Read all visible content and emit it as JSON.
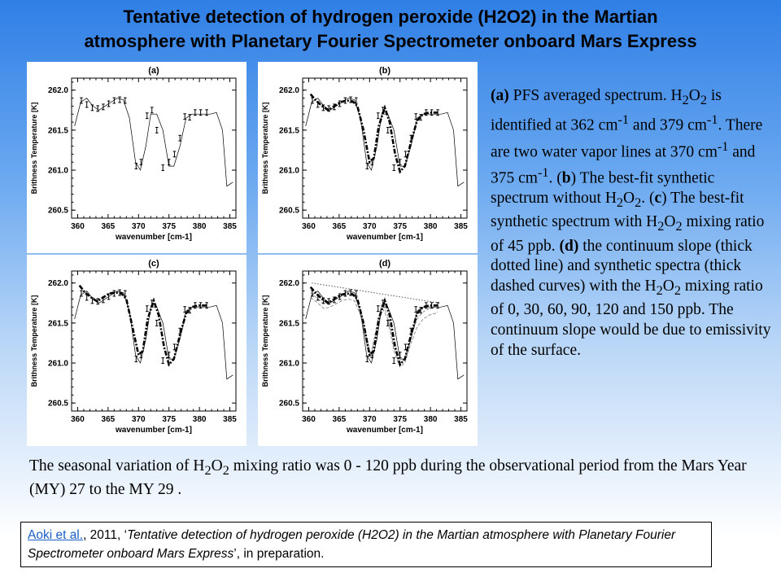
{
  "slide": {
    "title_line1": "Tentative detection of hydrogen peroxide (H2O2) in the Martian",
    "title_line2": "atmosphere with Planetary Fourier Spectrometer onboard Mars Express"
  },
  "description": {
    "a_label": "(a)",
    "a_text1": " PFS averaged spectrum. H",
    "sub2": "2",
    "a_text2": "O",
    "a_text3": " is identified at 362 cm",
    "sup_m1": "-1",
    "a_text4": " and 379 cm",
    "a_text5": ". There are two water vapor lines at 370 cm",
    "a_text6": " and 375 cm",
    "a_text7": ". (",
    "b_label": "b",
    "b_text1": ") The best-fit synthetic spectrum without H",
    "b_text2": ". (",
    "c_label": "c",
    "c_text1": ") The best-fit synthetic spectrum with H",
    "c_text2": " mixing ratio of 45 ppb. ",
    "d_label": "(d)",
    "d_text1": " the continuum slope (thick dotted line) and synthetic spectra (thick dashed curves) with the H",
    "d_text2": " mixing ratio of 0, 30, 60, 90, 120 and 150 ppb. The continuum slope would be due to emissivity of the surface."
  },
  "summary": {
    "text1": "The seasonal variation of H",
    "text2": " mixing ratio was 0 - 120 ppb during the observational period from the Mars Year (MY) 27 to the MY 29 ."
  },
  "citation": {
    "author_link": "Aoki et al.",
    "year": ", 2011, ‘",
    "title": "Tentative detection of hydrogen peroxide (H2O2) in the Martian atmosphere with Planetary Fourier Spectrometer onboard Mars Express",
    "tail": "’, in preparation."
  },
  "chart_data": [
    {
      "type": "line",
      "panel": "(a)",
      "xlabel": "wavenumber [cm-1]",
      "ylabel": "Brithness Temperature [K]",
      "xlim": [
        359,
        386
      ],
      "ylim": [
        260.4,
        262.15
      ],
      "xticks": [
        "360",
        "365",
        "370",
        "375",
        "380",
        "385"
      ],
      "yticks": [
        "260.5",
        "261.0",
        "261.5",
        "262.0"
      ],
      "series": [
        {
          "style": "solid-thin",
          "x": [
            359.5,
            360.5,
            361.5,
            362.5,
            363.5,
            364.5,
            365.5,
            366.5,
            367.5,
            368.5,
            369.5,
            370.3,
            371.2,
            372.0,
            373.0,
            374.0,
            375.0,
            375.8,
            376.8,
            377.8,
            378.8,
            379.8,
            380.8,
            381.8,
            382.8,
            383.8,
            384.5,
            385.5
          ],
          "y": [
            261.55,
            261.85,
            261.9,
            261.8,
            261.75,
            261.8,
            261.85,
            261.9,
            261.88,
            261.65,
            261.1,
            261.0,
            261.3,
            261.7,
            261.7,
            261.5,
            261.05,
            261.05,
            261.3,
            261.65,
            261.7,
            261.7,
            261.7,
            261.7,
            261.72,
            261.5,
            260.8,
            260.85
          ]
        },
        {
          "style": "errorbars",
          "x": [
            360.6,
            361.5,
            362.4,
            363.3,
            364.2,
            365.1,
            366.0,
            366.9,
            367.8,
            369.6,
            370.4,
            371.4,
            372.2,
            373.0,
            374.0,
            375.0,
            375.9,
            376.8,
            377.6,
            378.4,
            379.3,
            380.2,
            381.2
          ],
          "y": [
            261.87,
            261.82,
            261.78,
            261.77,
            261.79,
            261.83,
            261.87,
            261.88,
            261.87,
            261.05,
            261.1,
            261.68,
            261.75,
            261.5,
            261.03,
            261.1,
            261.2,
            261.4,
            261.67,
            261.66,
            261.72,
            261.72,
            261.72
          ]
        }
      ]
    },
    {
      "type": "line",
      "panel": "(b)",
      "xlabel": "wavenumber [cm-1]",
      "ylabel": "Brithness Temperature [K]",
      "xlim": [
        359,
        386
      ],
      "ylim": [
        260.4,
        262.15
      ],
      "xticks": [
        "360",
        "365",
        "370",
        "375",
        "380",
        "385"
      ],
      "yticks": [
        "260.5",
        "261.0",
        "261.5",
        "262.0"
      ],
      "series": [
        {
          "style": "solid-thin",
          "x": [
            359.5,
            360.5,
            361.5,
            362.5,
            363.5,
            364.5,
            365.5,
            366.5,
            367.5,
            368.5,
            369.5,
            370.3,
            371.2,
            372.0,
            373.0,
            374.0,
            375.0,
            375.8,
            376.8,
            377.8,
            378.8,
            379.8,
            380.8,
            381.8,
            382.8,
            383.8,
            384.5,
            385.5
          ],
          "y": [
            261.55,
            261.85,
            261.9,
            261.8,
            261.75,
            261.8,
            261.85,
            261.9,
            261.88,
            261.65,
            261.1,
            261.0,
            261.3,
            261.7,
            261.7,
            261.5,
            261.05,
            261.05,
            261.3,
            261.65,
            261.7,
            261.7,
            261.7,
            261.7,
            261.72,
            261.5,
            260.8,
            260.85
          ]
        },
        {
          "style": "dash-dot-thick",
          "x": [
            360.3,
            361.2,
            362.2,
            363.2,
            364.2,
            365.2,
            366.2,
            367.2,
            368.0,
            369.0,
            370.0,
            370.7,
            371.5,
            372.5,
            373.3,
            374.2,
            375.0,
            375.8,
            376.8,
            377.8,
            378.8,
            379.8,
            380.8,
            381.2
          ],
          "y": [
            261.95,
            261.87,
            261.8,
            261.75,
            261.8,
            261.85,
            261.87,
            261.86,
            261.8,
            261.5,
            261.1,
            261.15,
            261.55,
            261.78,
            261.6,
            261.2,
            260.98,
            261.05,
            261.35,
            261.62,
            261.7,
            261.72,
            261.72,
            261.72
          ]
        },
        {
          "style": "errorbars",
          "x": [
            360.6,
            361.5,
            362.4,
            363.3,
            364.2,
            365.1,
            366.0,
            366.9,
            367.8,
            369.6,
            370.4,
            371.4,
            372.2,
            373.0,
            374.0,
            375.0,
            375.9,
            376.8,
            377.6,
            378.4,
            379.3,
            380.2,
            381.2
          ],
          "y": [
            261.87,
            261.82,
            261.78,
            261.77,
            261.79,
            261.83,
            261.87,
            261.88,
            261.87,
            261.05,
            261.1,
            261.68,
            261.75,
            261.5,
            261.03,
            261.1,
            261.2,
            261.4,
            261.67,
            261.66,
            261.72,
            261.72,
            261.72
          ]
        }
      ]
    },
    {
      "type": "line",
      "panel": "(c)",
      "xlabel": "wavenumber [cm-1]",
      "ylabel": "Brithness Temperature [K]",
      "xlim": [
        359,
        386
      ],
      "ylim": [
        260.4,
        262.15
      ],
      "xticks": [
        "360",
        "365",
        "370",
        "375",
        "380",
        "385"
      ],
      "yticks": [
        "260.5",
        "261.0",
        "261.5",
        "262.0"
      ],
      "series": [
        {
          "style": "solid-thin",
          "x": [
            359.5,
            360.5,
            361.5,
            362.5,
            363.5,
            364.5,
            365.5,
            366.5,
            367.5,
            368.5,
            369.5,
            370.3,
            371.2,
            372.0,
            373.0,
            374.0,
            375.0,
            375.8,
            376.8,
            377.8,
            378.8,
            379.8,
            380.8,
            381.8,
            382.8,
            383.8,
            384.5,
            385.5
          ],
          "y": [
            261.55,
            261.85,
            261.9,
            261.8,
            261.75,
            261.8,
            261.85,
            261.9,
            261.88,
            261.65,
            261.1,
            261.0,
            261.3,
            261.7,
            261.7,
            261.5,
            261.05,
            261.05,
            261.3,
            261.65,
            261.7,
            261.7,
            261.7,
            261.7,
            261.72,
            261.5,
            260.8,
            260.85
          ]
        },
        {
          "style": "dash-dot-thick",
          "x": [
            360.3,
            361.2,
            362.2,
            363.2,
            364.2,
            365.2,
            366.2,
            367.2,
            368.0,
            369.0,
            370.0,
            370.7,
            371.5,
            372.5,
            373.3,
            374.2,
            375.0,
            375.8,
            376.8,
            377.8,
            378.8,
            379.8,
            380.8,
            381.2
          ],
          "y": [
            261.97,
            261.88,
            261.82,
            261.77,
            261.82,
            261.87,
            261.88,
            261.87,
            261.8,
            261.45,
            261.1,
            261.15,
            261.55,
            261.78,
            261.6,
            261.2,
            260.98,
            261.05,
            261.35,
            261.62,
            261.7,
            261.72,
            261.72,
            261.72
          ]
        },
        {
          "style": "errorbars",
          "x": [
            360.6,
            361.5,
            362.4,
            363.3,
            364.2,
            365.1,
            366.0,
            366.9,
            367.8,
            369.6,
            370.4,
            371.4,
            372.2,
            373.0,
            374.0,
            375.0,
            375.9,
            376.8,
            377.6,
            378.4,
            379.3,
            380.2,
            381.2
          ],
          "y": [
            261.87,
            261.82,
            261.78,
            261.77,
            261.79,
            261.83,
            261.87,
            261.88,
            261.87,
            261.05,
            261.1,
            261.68,
            261.75,
            261.5,
            261.03,
            261.1,
            261.2,
            261.4,
            261.67,
            261.66,
            261.72,
            261.72,
            261.72
          ]
        }
      ]
    },
    {
      "type": "line",
      "panel": "(d)",
      "xlabel": "wavenumber [cm-1]",
      "ylabel": "Brithness Temperature [K]",
      "xlim": [
        359,
        386
      ],
      "ylim": [
        260.4,
        262.15
      ],
      "xticks": [
        "360",
        "365",
        "370",
        "375",
        "380",
        "385"
      ],
      "yticks": [
        "260.5",
        "261.0",
        "261.5",
        "262.0"
      ],
      "series": [
        {
          "style": "solid-thin",
          "x": [
            359.5,
            360.5,
            361.5,
            362.5,
            363.5,
            364.5,
            365.5,
            366.5,
            367.5,
            368.5,
            369.5,
            370.3,
            371.2,
            372.0,
            373.0,
            374.0,
            375.0,
            375.8,
            376.8,
            377.8,
            378.8,
            379.8,
            380.8,
            381.8,
            382.8,
            383.8,
            384.5,
            385.5
          ],
          "y": [
            261.55,
            261.85,
            261.9,
            261.8,
            261.75,
            261.8,
            261.85,
            261.9,
            261.88,
            261.65,
            261.1,
            261.0,
            261.3,
            261.7,
            261.7,
            261.5,
            261.05,
            261.05,
            261.3,
            261.65,
            261.7,
            261.7,
            261.7,
            261.7,
            261.72,
            261.5,
            260.8,
            260.85
          ]
        },
        {
          "style": "dotted-slope",
          "x": [
            360.5,
            381.5
          ],
          "y": [
            262.0,
            261.75
          ]
        },
        {
          "style": "dash-thin-gray",
          "x": [
            360.3,
            361.5,
            362.5,
            363.5,
            364.5,
            365.5,
            366.5,
            367.5,
            368.5,
            369.5,
            370.2,
            371.0,
            372.0,
            373.0,
            374.0,
            375.0,
            375.8,
            376.8,
            377.8,
            378.8,
            379.8,
            380.8,
            381.2
          ],
          "y": [
            261.82,
            261.75,
            261.68,
            261.7,
            261.74,
            261.78,
            261.8,
            261.78,
            261.6,
            261.25,
            261.08,
            261.35,
            261.7,
            261.55,
            261.15,
            260.95,
            261.0,
            261.25,
            261.45,
            261.55,
            261.6,
            261.62,
            261.64
          ]
        },
        {
          "style": "dash-thin-gray",
          "x": [
            360.3,
            361.5,
            362.5,
            363.5,
            364.5,
            365.5,
            366.5,
            367.5,
            368.5,
            369.5,
            370.2,
            371.0,
            372.0,
            373.0,
            374.0,
            375.0,
            375.8,
            376.8,
            377.8,
            378.8,
            379.8,
            380.8,
            381.2
          ],
          "y": [
            261.88,
            261.8,
            261.74,
            261.76,
            261.8,
            261.84,
            261.86,
            261.84,
            261.65,
            261.3,
            261.1,
            261.4,
            261.74,
            261.6,
            261.2,
            261.0,
            261.05,
            261.32,
            261.55,
            261.64,
            261.68,
            261.7,
            261.7
          ]
        },
        {
          "style": "dash-dot-thick",
          "x": [
            360.3,
            361.2,
            362.2,
            363.2,
            364.2,
            365.2,
            366.2,
            367.2,
            368.0,
            369.0,
            370.0,
            370.7,
            371.5,
            372.5,
            373.3,
            374.2,
            375.0,
            375.8,
            376.8,
            377.8,
            378.8,
            379.8,
            380.8,
            381.2
          ],
          "y": [
            261.95,
            261.87,
            261.8,
            261.75,
            261.8,
            261.85,
            261.87,
            261.86,
            261.8,
            261.5,
            261.1,
            261.15,
            261.55,
            261.78,
            261.6,
            261.2,
            260.98,
            261.05,
            261.35,
            261.62,
            261.7,
            261.72,
            261.72,
            261.72
          ]
        },
        {
          "style": "errorbars",
          "x": [
            360.6,
            361.5,
            362.4,
            363.3,
            364.2,
            365.1,
            366.0,
            366.9,
            367.8,
            369.6,
            370.4,
            371.4,
            372.2,
            373.0,
            374.0,
            375.0,
            375.9,
            376.8,
            377.6,
            378.4,
            379.3,
            380.2,
            381.2
          ],
          "y": [
            261.87,
            261.82,
            261.78,
            261.77,
            261.79,
            261.83,
            261.87,
            261.88,
            261.87,
            261.05,
            261.1,
            261.68,
            261.75,
            261.5,
            261.03,
            261.1,
            261.2,
            261.4,
            261.67,
            261.66,
            261.72,
            261.72,
            261.72
          ]
        }
      ]
    }
  ]
}
